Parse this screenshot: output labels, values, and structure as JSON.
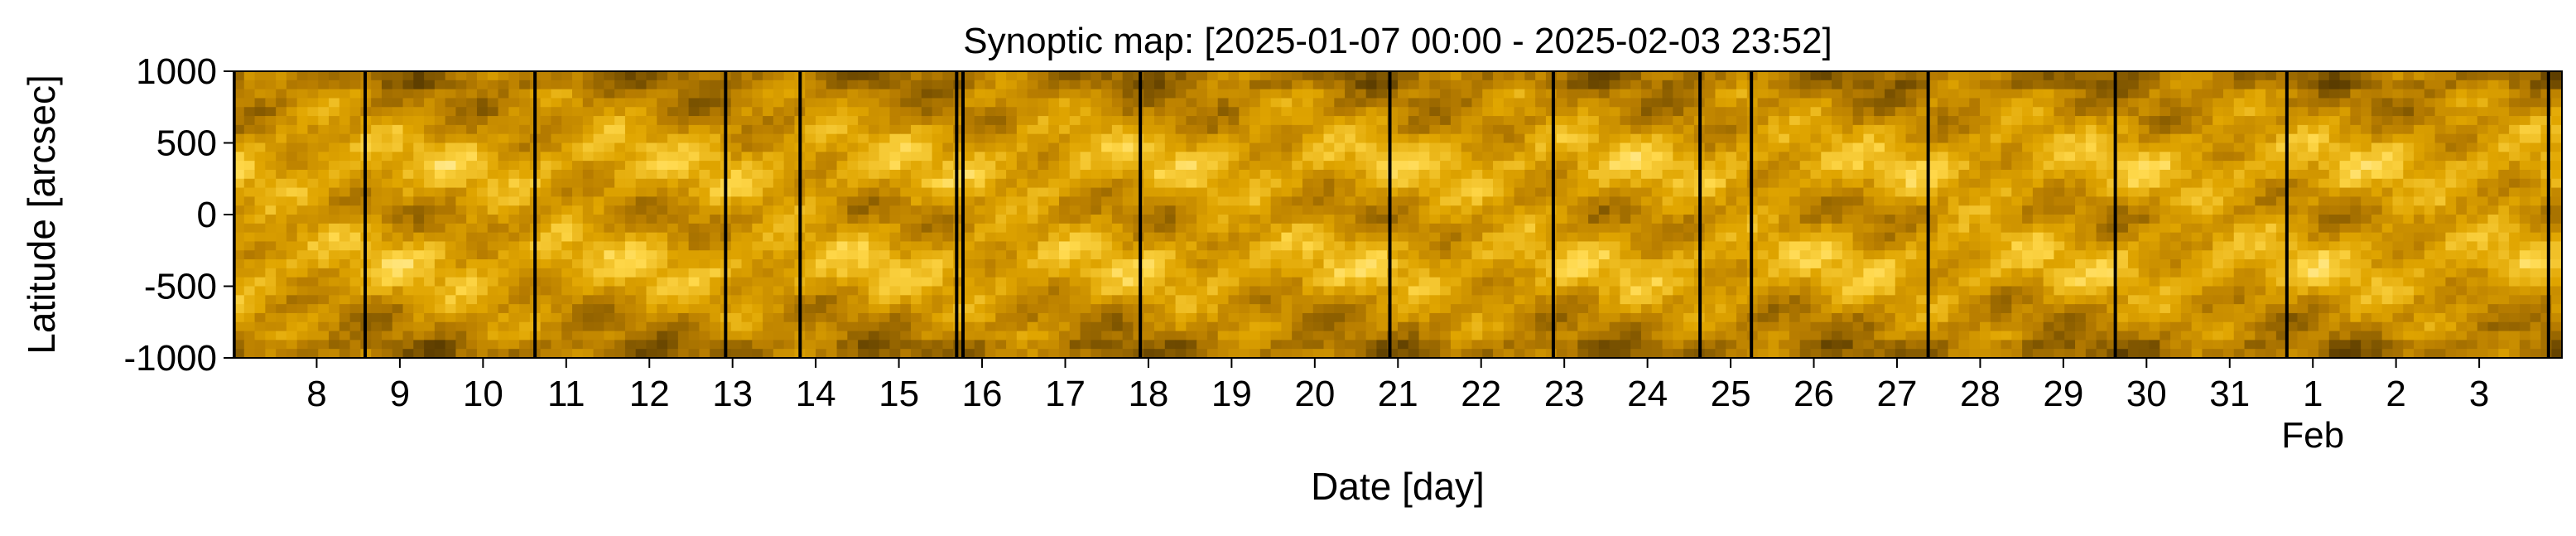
{
  "chart_data": {
    "type": "heatmap",
    "title": "Synoptic map: [2025-01-07 00:00 - 2025-02-03 23:52]",
    "xlabel": "Date [day]",
    "ylabel": "Latitude [arcsec]",
    "x_range": [
      "2025-01-07 00:00",
      "2025-02-03 23:52"
    ],
    "ylim": [
      -1000,
      1000
    ],
    "y_ticks": [
      1000,
      500,
      0,
      -500,
      -1000
    ],
    "x_ticks": [
      {
        "day": "2025-01-08",
        "label": "8"
      },
      {
        "day": "2025-01-09",
        "label": "9"
      },
      {
        "day": "2025-01-10",
        "label": "10"
      },
      {
        "day": "2025-01-11",
        "label": "11"
      },
      {
        "day": "2025-01-12",
        "label": "12"
      },
      {
        "day": "2025-01-13",
        "label": "13"
      },
      {
        "day": "2025-01-14",
        "label": "14"
      },
      {
        "day": "2025-01-15",
        "label": "15"
      },
      {
        "day": "2025-01-16",
        "label": "16"
      },
      {
        "day": "2025-01-17",
        "label": "17"
      },
      {
        "day": "2025-01-18",
        "label": "18"
      },
      {
        "day": "2025-01-19",
        "label": "19"
      },
      {
        "day": "2025-01-20",
        "label": "20"
      },
      {
        "day": "2025-01-21",
        "label": "21"
      },
      {
        "day": "2025-01-22",
        "label": "22"
      },
      {
        "day": "2025-01-23",
        "label": "23"
      },
      {
        "day": "2025-01-24",
        "label": "24"
      },
      {
        "day": "2025-01-25",
        "label": "25"
      },
      {
        "day": "2025-01-26",
        "label": "26"
      },
      {
        "day": "2025-01-27",
        "label": "27"
      },
      {
        "day": "2025-01-28",
        "label": "28"
      },
      {
        "day": "2025-01-29",
        "label": "29"
      },
      {
        "day": "2025-01-30",
        "label": "30"
      },
      {
        "day": "2025-01-31",
        "label": "31"
      },
      {
        "day": "2025-02-01",
        "label": "1",
        "sublabel": "Feb"
      },
      {
        "day": "2025-02-02",
        "label": "2"
      },
      {
        "day": "2025-02-03",
        "label": "3"
      }
    ],
    "data_gaps": [
      "2025-01-07 00:10",
      "2025-01-08 14:00",
      "2025-01-10 15:00",
      "2025-01-12 22:00",
      "2025-01-13 19:30",
      "2025-01-15 16:40",
      "2025-01-15 18:30",
      "2025-01-17 21:40",
      "2025-01-20 21:40",
      "2025-01-22 20:50",
      "2025-01-24 15:10",
      "2025-01-25 06:00",
      "2025-01-27 09:00",
      "2025-01-29 15:00",
      "2025-01-31 16:30",
      "2025-02-03 20:00"
    ],
    "colormap": [
      "#3d2800",
      "#7a5200",
      "#b87d00",
      "#e0a500",
      "#ffd84a",
      "#fff8c8"
    ],
    "grid": false,
    "legend": "none"
  }
}
